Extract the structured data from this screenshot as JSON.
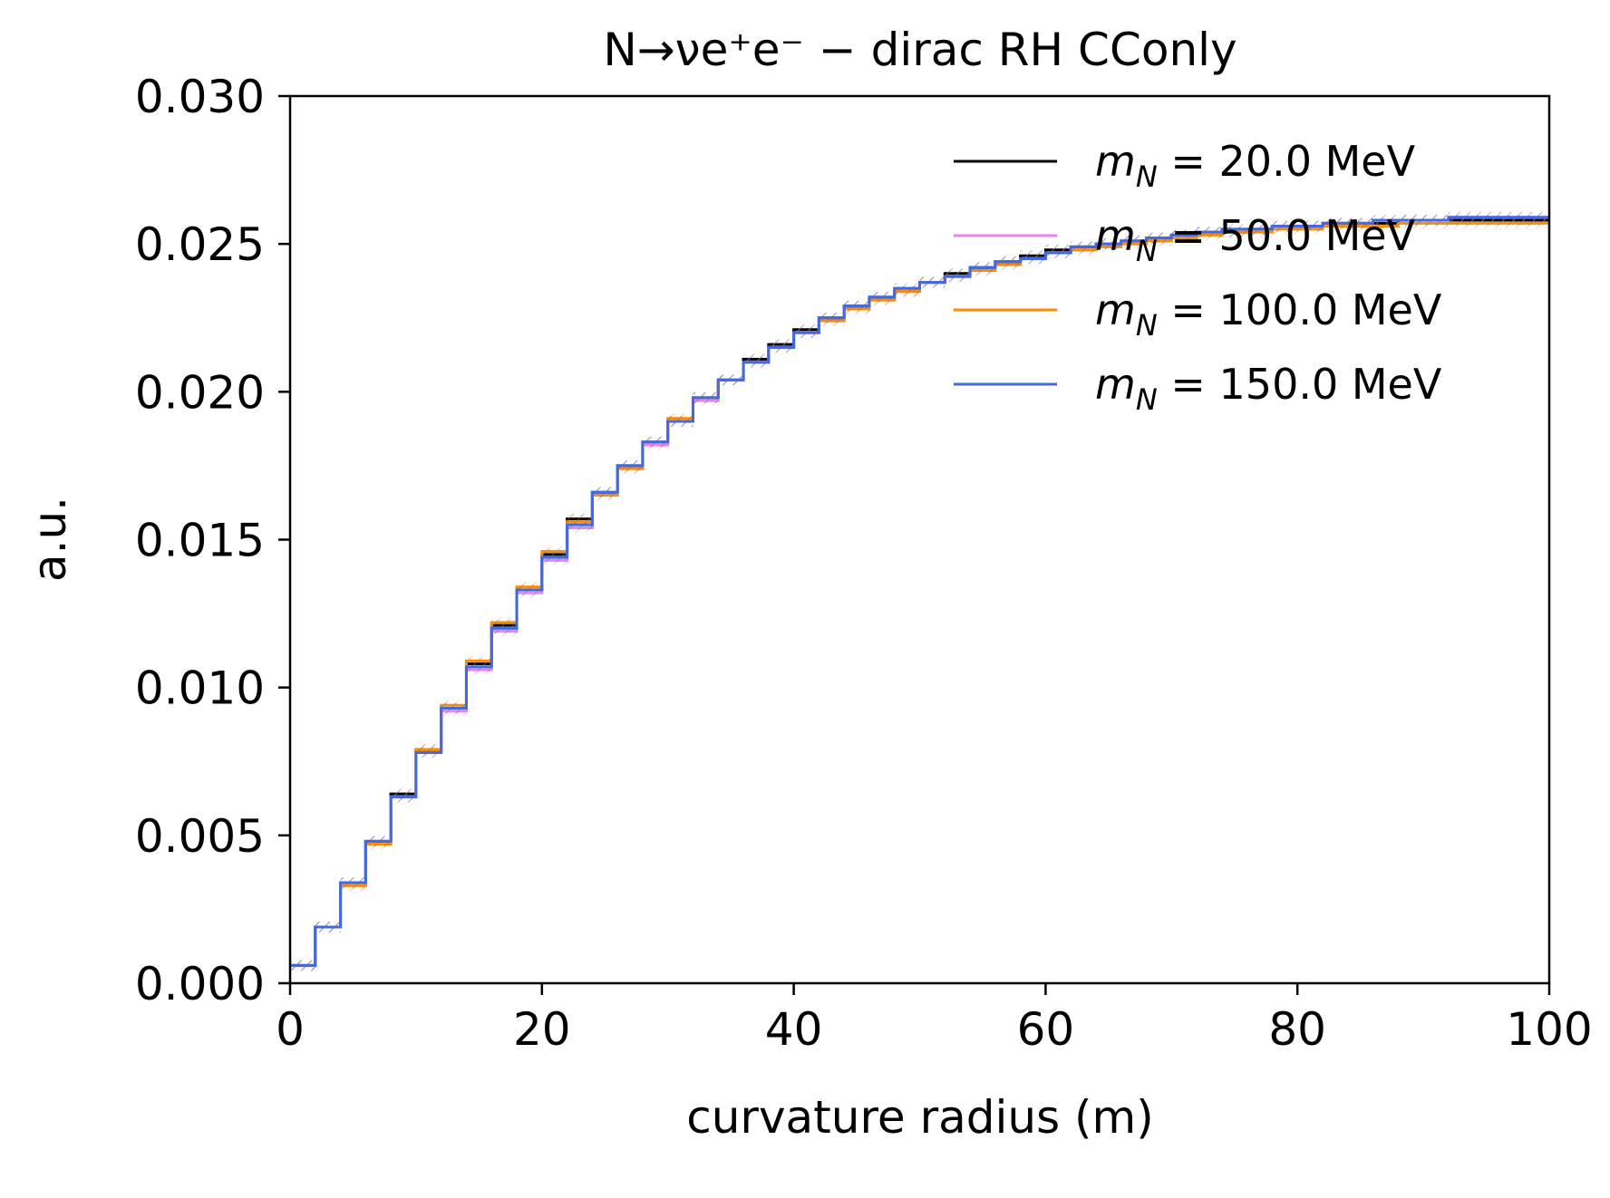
{
  "chart_data": {
    "type": "line",
    "subtype": "step-histogram",
    "title": "N→νe⁺e⁻ − dirac RH CConly",
    "xlabel": "curvature radius (m)",
    "ylabel": "a.u.",
    "xlim": [
      0,
      100
    ],
    "ylim": [
      0,
      0.03
    ],
    "x_ticks": [
      "0",
      "20",
      "40",
      "60",
      "80",
      "100"
    ],
    "y_ticks": [
      "0.000",
      "0.005",
      "0.010",
      "0.015",
      "0.020",
      "0.025",
      "0.030"
    ],
    "grid": false,
    "legend_position": "upper-right",
    "bin_edges": [
      0,
      2,
      4,
      6,
      8,
      10,
      12,
      14,
      16,
      18,
      20,
      22,
      24,
      26,
      28,
      30,
      32,
      34,
      36,
      38,
      40,
      42,
      44,
      46,
      48,
      50,
      52,
      54,
      56,
      58,
      60,
      62,
      64,
      66,
      68,
      70,
      72,
      74,
      76,
      78,
      80,
      82,
      84,
      86,
      88,
      90,
      92,
      94,
      96,
      98,
      100
    ],
    "series": [
      {
        "name": "m_N = 20.0 MeV",
        "label_parts": [
          "m",
          "N",
          " = 20.0 MeV"
        ],
        "color": "#000000",
        "values": [
          0.0006,
          0.0019,
          0.0034,
          0.0048,
          0.0064,
          0.0079,
          0.0093,
          0.0108,
          0.0121,
          0.0133,
          0.0145,
          0.0157,
          0.0166,
          0.0175,
          0.0183,
          0.019,
          0.0198,
          0.0204,
          0.0211,
          0.0216,
          0.0221,
          0.0225,
          0.0229,
          0.0232,
          0.0234,
          0.0237,
          0.024,
          0.0242,
          0.0244,
          0.0246,
          0.0248,
          0.0249,
          0.025,
          0.0251,
          0.0252,
          0.0253,
          0.0254,
          0.0254,
          0.0255,
          0.0256,
          0.0256,
          0.0257,
          0.0257,
          0.0257,
          0.0258,
          0.0258,
          0.0258,
          0.0258,
          0.0258,
          0.0258
        ]
      },
      {
        "name": "m_N = 50.0 MeV",
        "label_parts": [
          "m",
          "N",
          " = 50.0 MeV"
        ],
        "color": "#ee82ee",
        "values": [
          0.0006,
          0.0019,
          0.0033,
          0.0048,
          0.0063,
          0.0078,
          0.0092,
          0.0106,
          0.0119,
          0.0132,
          0.0143,
          0.0154,
          0.0165,
          0.0174,
          0.0182,
          0.019,
          0.0197,
          0.0204,
          0.021,
          0.0215,
          0.022,
          0.0224,
          0.0228,
          0.0231,
          0.0234,
          0.0237,
          0.0239,
          0.0241,
          0.0243,
          0.0245,
          0.0247,
          0.0248,
          0.025,
          0.0251,
          0.0252,
          0.0253,
          0.0254,
          0.0254,
          0.0255,
          0.0256,
          0.0256,
          0.0257,
          0.0257,
          0.0258,
          0.0258,
          0.0258,
          0.0259,
          0.0259,
          0.0259,
          0.0259
        ]
      },
      {
        "name": "m_N = 100.0 MeV",
        "label_parts": [
          "m",
          "N",
          " = 100.0 MeV"
        ],
        "color": "#ff8c00",
        "values": [
          0.0006,
          0.0019,
          0.0033,
          0.0047,
          0.0063,
          0.0079,
          0.0094,
          0.0109,
          0.0122,
          0.0134,
          0.0146,
          0.0156,
          0.0165,
          0.0174,
          0.0183,
          0.0191,
          0.0198,
          0.0204,
          0.021,
          0.0215,
          0.022,
          0.0224,
          0.0228,
          0.0231,
          0.0234,
          0.0237,
          0.0239,
          0.0241,
          0.0243,
          0.0245,
          0.0247,
          0.0248,
          0.0249,
          0.025,
          0.0251,
          0.0252,
          0.0253,
          0.0254,
          0.0254,
          0.0255,
          0.0255,
          0.0256,
          0.0256,
          0.0256,
          0.0257,
          0.0257,
          0.0257,
          0.0257,
          0.0257,
          0.0257
        ]
      },
      {
        "name": "m_N = 150.0 MeV",
        "label_parts": [
          "m",
          "N",
          " = 150.0 MeV"
        ],
        "color": "#4169e1",
        "values": [
          0.0006,
          0.0019,
          0.0034,
          0.0048,
          0.0063,
          0.0078,
          0.0093,
          0.0107,
          0.012,
          0.0133,
          0.0144,
          0.0155,
          0.0166,
          0.0175,
          0.0183,
          0.019,
          0.0198,
          0.0204,
          0.021,
          0.0215,
          0.022,
          0.0225,
          0.0229,
          0.0232,
          0.0235,
          0.0237,
          0.0239,
          0.0242,
          0.0244,
          0.0245,
          0.0247,
          0.0249,
          0.025,
          0.0251,
          0.0252,
          0.0253,
          0.0254,
          0.0255,
          0.0255,
          0.0256,
          0.0256,
          0.0257,
          0.0257,
          0.0258,
          0.0258,
          0.0258,
          0.0259,
          0.0259,
          0.0259,
          0.0259
        ]
      }
    ]
  }
}
